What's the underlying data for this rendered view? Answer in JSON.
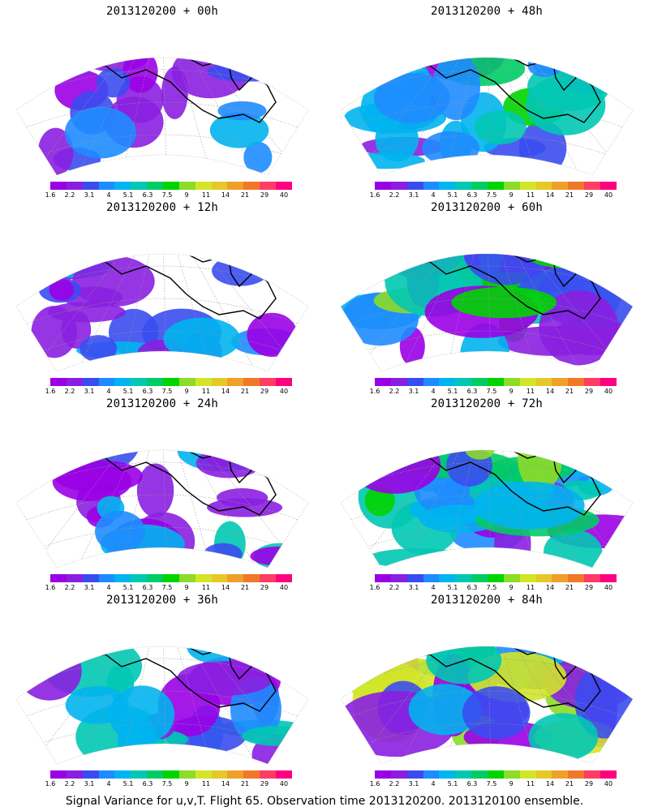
{
  "panels": [
    {
      "title": "2013120200 + 00h",
      "intensity": 0.15
    },
    {
      "title": "2013120200 + 48h",
      "intensity": 0.55
    },
    {
      "title": "2013120200 + 12h",
      "intensity": 0.25
    },
    {
      "title": "2013120200 + 60h",
      "intensity": 0.7
    },
    {
      "title": "2013120200 + 24h",
      "intensity": 0.35
    },
    {
      "title": "2013120200 + 72h",
      "intensity": 0.8
    },
    {
      "title": "2013120200 + 36h",
      "intensity": 0.45
    },
    {
      "title": "2013120200 + 84h",
      "intensity": 0.95
    }
  ],
  "colorbar": {
    "labels": [
      "1.6",
      "2.2",
      "3.1",
      "4",
      "5.1",
      "6.3",
      "7.5",
      "9",
      "11",
      "14",
      "21",
      "29",
      "40"
    ],
    "colors": [
      "#9a00e6",
      "#8a1fe0",
      "#3a4cf0",
      "#1e8cff",
      "#00b4f0",
      "#00c8b4",
      "#00cc66",
      "#00d400",
      "#8cdc28",
      "#d2e628",
      "#e6c828",
      "#f0a028",
      "#f07828",
      "#ff3c64",
      "#ff0080"
    ]
  },
  "footer": "Signal Variance for u,v,T. Flight 65. Observation time 2013120200. 2013120100 ensemble."
}
